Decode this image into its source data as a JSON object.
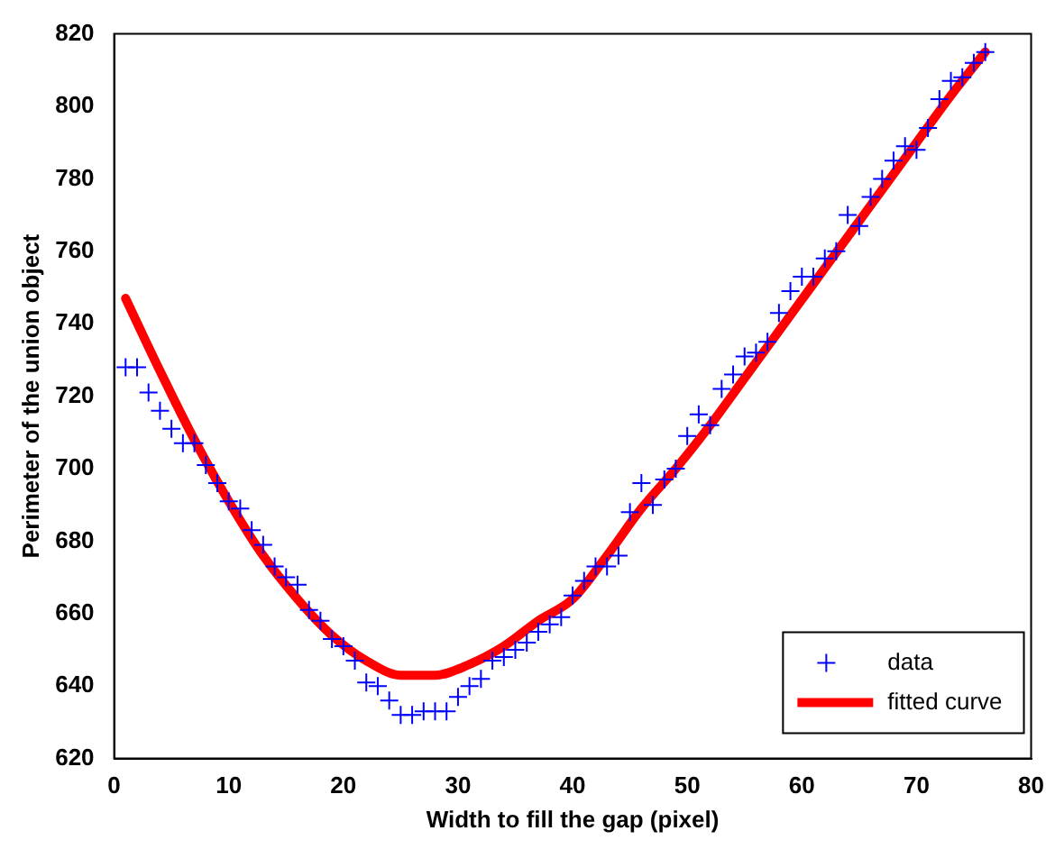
{
  "chart_data": {
    "type": "scatter",
    "xlabel": "Width to fill the gap (pixel)",
    "ylabel": "Perimeter of the union object",
    "xlim": [
      0,
      80
    ],
    "xticks": [
      0,
      10,
      20,
      30,
      40,
      50,
      60,
      70,
      80
    ],
    "ylim": [
      620,
      820
    ],
    "yticks": [
      620,
      640,
      660,
      680,
      700,
      720,
      740,
      760,
      780,
      800,
      820
    ],
    "grid": false,
    "legend": "bottom right",
    "series": [
      {
        "name": "data",
        "type": "scatter",
        "marker": "cross",
        "color": "#0000ff",
        "x": [
          1,
          2,
          3,
          4,
          5,
          6,
          7,
          8,
          9,
          10,
          11,
          12,
          13,
          14,
          15,
          16,
          17,
          18,
          19,
          20,
          21,
          22,
          23,
          24,
          25,
          26,
          27,
          28,
          29,
          30,
          31,
          32,
          33,
          34,
          35,
          36,
          37,
          38,
          39,
          40,
          41,
          42,
          43,
          44,
          45,
          46,
          47,
          48,
          49,
          50,
          51,
          52,
          53,
          54,
          55,
          56,
          57,
          58,
          59,
          60,
          61,
          62,
          63,
          64,
          65,
          66,
          67,
          68,
          69,
          70,
          71,
          72,
          73,
          74,
          75,
          76
        ],
        "values": [
          728,
          728,
          721,
          716,
          711,
          707,
          707,
          701,
          696,
          691,
          689,
          683,
          679,
          673,
          670,
          668,
          661,
          658,
          653,
          651,
          647,
          641,
          640,
          636,
          632,
          632,
          633,
          633,
          633,
          637,
          640,
          642,
          647,
          648,
          650,
          652,
          655,
          657,
          659,
          665,
          669,
          673,
          673,
          676,
          688,
          696,
          690,
          697,
          700,
          709,
          715,
          712,
          722,
          726,
          731,
          732,
          735,
          743,
          749,
          753,
          753,
          758,
          760,
          770,
          767,
          775,
          780,
          785,
          789,
          788,
          794,
          802,
          807,
          808,
          812,
          815
        ]
      },
      {
        "name": "fitted curve",
        "type": "line",
        "marker": "none",
        "line_style": "solid",
        "color": "#ff0000",
        "x": [
          1,
          4,
          7,
          10,
          13,
          16,
          19,
          22,
          25,
          28,
          31,
          34,
          37,
          40,
          43,
          46,
          49,
          52,
          55,
          58,
          61,
          64,
          67,
          70,
          73,
          76
        ],
        "values": [
          747,
          727,
          708,
          691,
          676,
          664,
          654,
          647,
          643,
          643,
          646,
          651,
          658,
          664,
          676,
          689,
          700,
          712,
          725,
          738,
          751,
          764,
          777,
          790,
          803,
          815
        ]
      }
    ]
  }
}
